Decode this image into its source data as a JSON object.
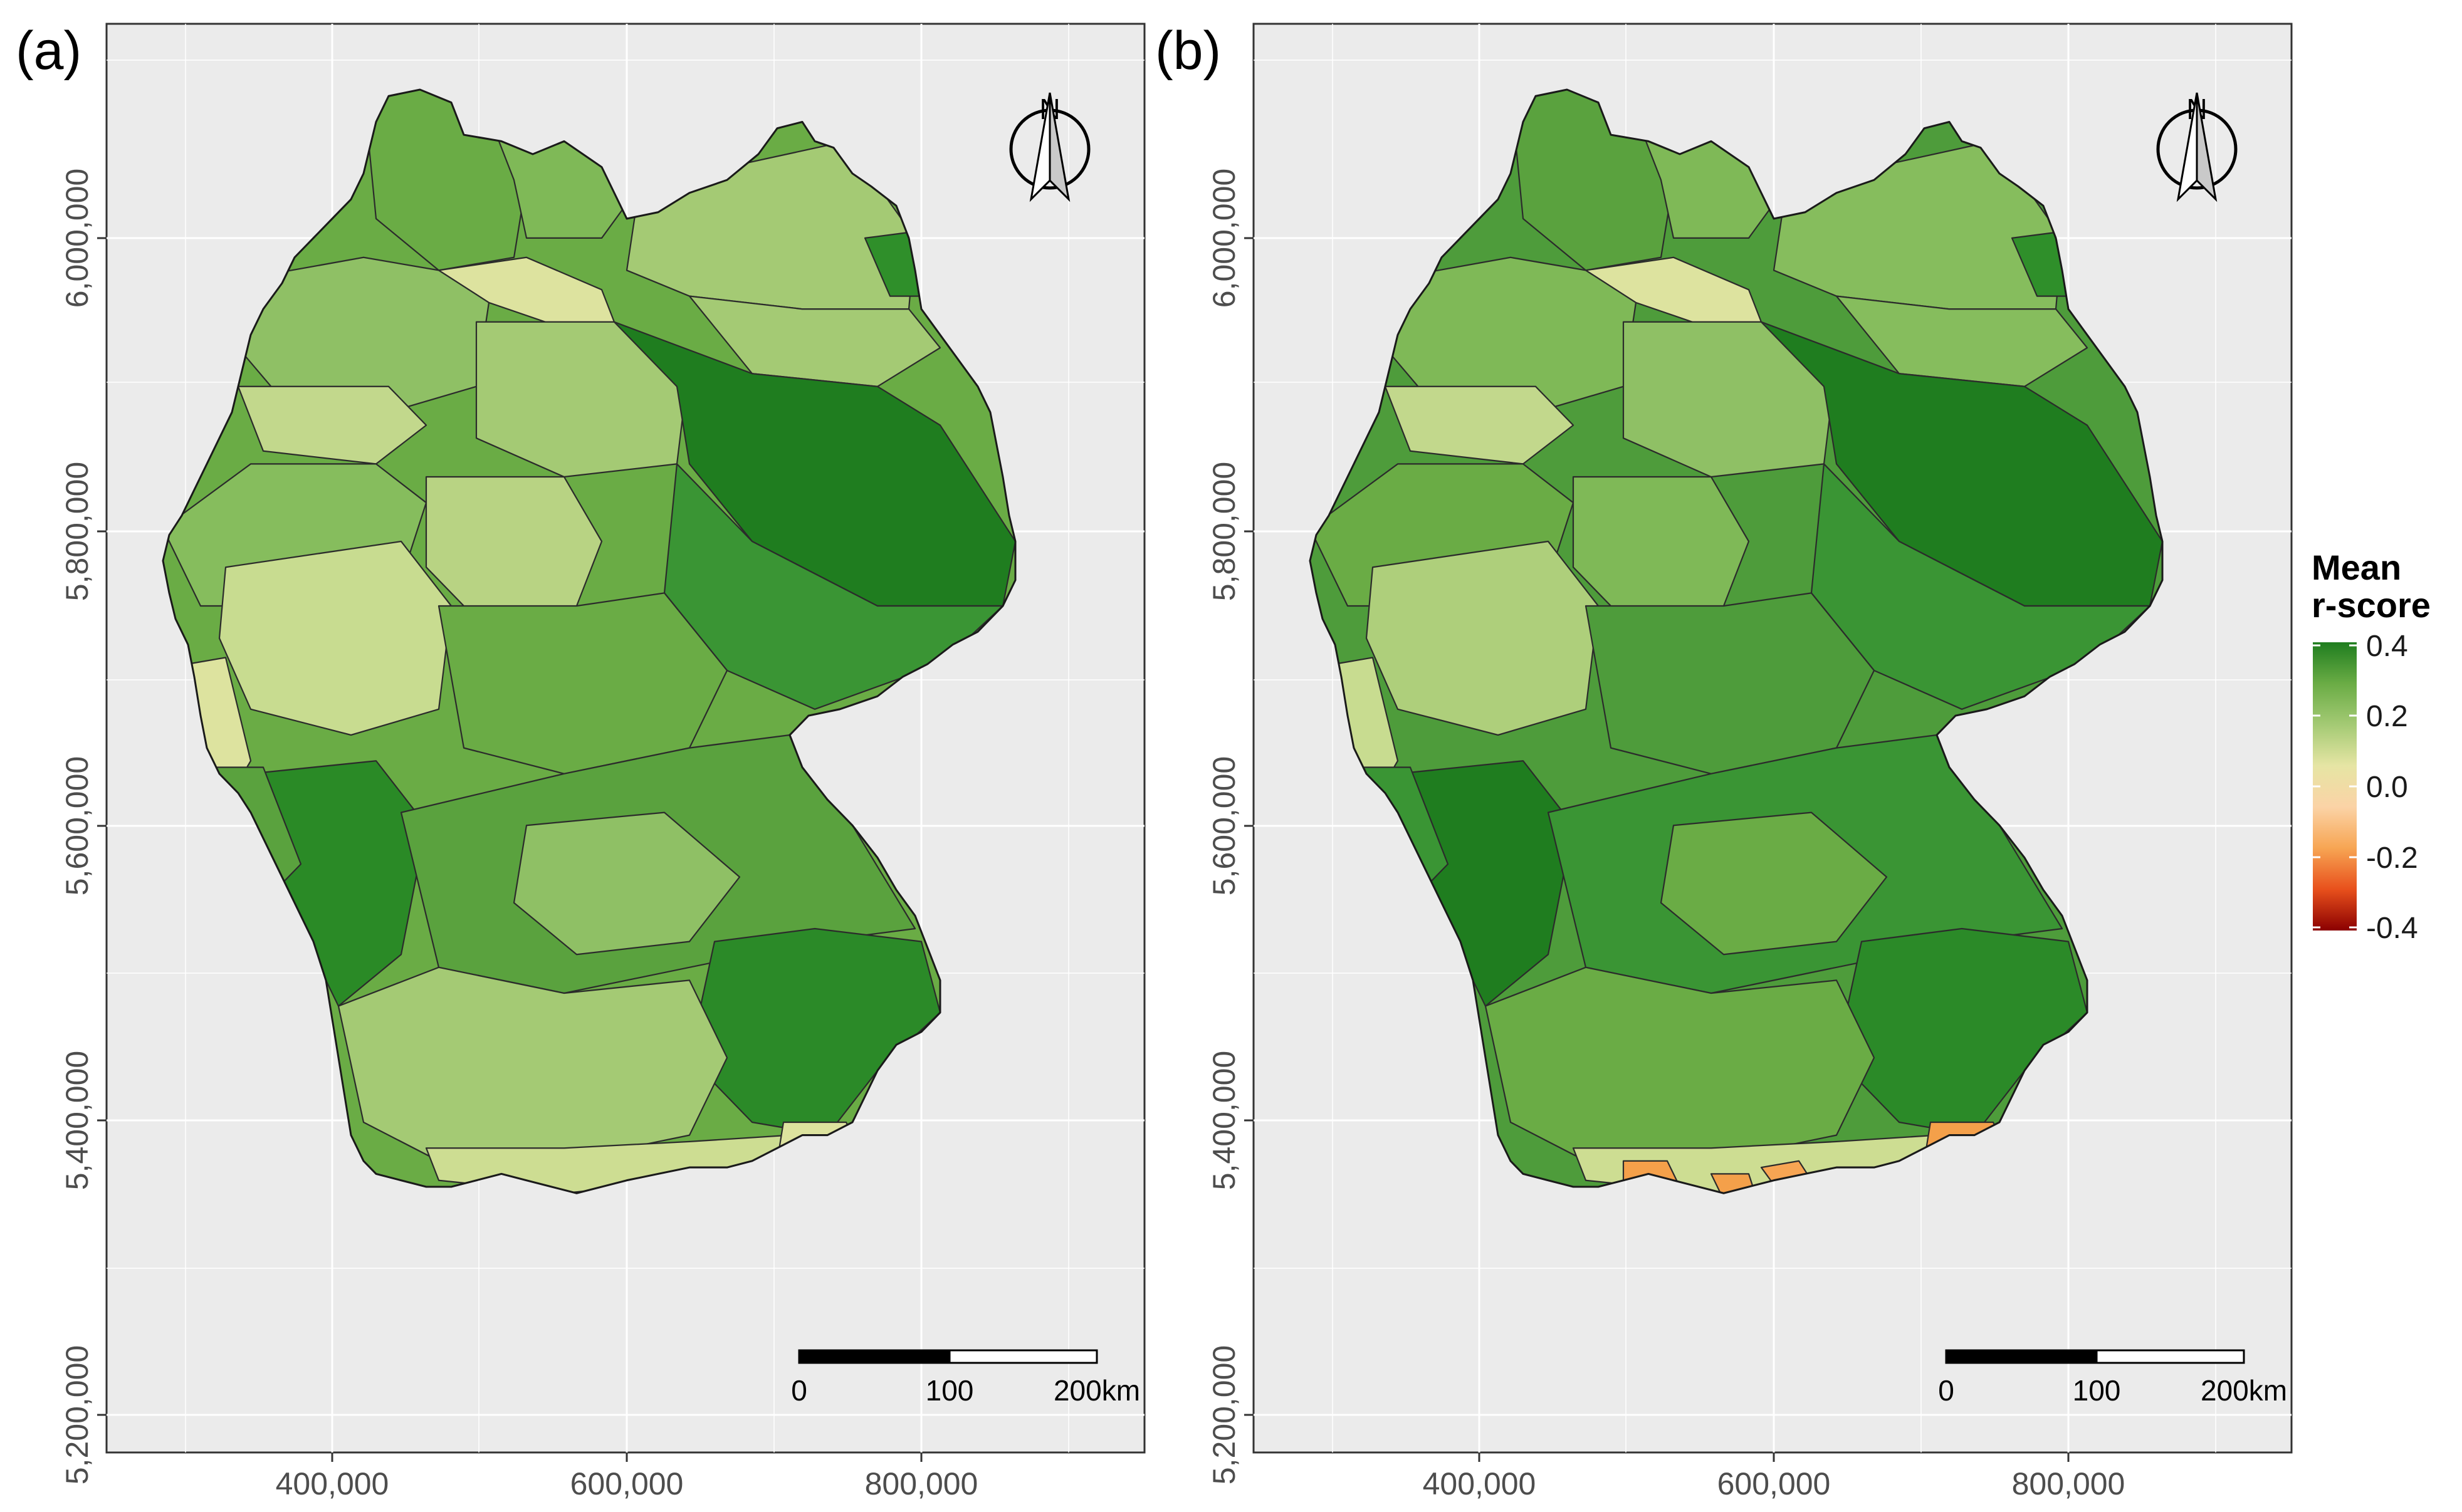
{
  "panels": [
    {
      "label": "(a)",
      "fills": {
        "north": "#6aac45",
        "schleswig": "#7fb957",
        "elbe_mouth": "#dde39f",
        "lowlands_w": "#8fc065",
        "nw_yellow": "#c2d88c",
        "westcentral": "#a4ca74",
        "center_pale": "#c8dc90",
        "west_edge": "#dde39f",
        "midwest": "#86bd5d",
        "ne_coast": "#a4ca74",
        "ne_inland": "#a4ca74",
        "ne_dark": "#2f8f2a",
        "east_dark": "#1f7d1f",
        "east_mid": "#3a9534",
        "center": "#6aac45",
        "center_light": "#b8d383",
        "sw_dark": "#2a8a26",
        "sw_mid": "#5aa23e",
        "south_mid": "#5aa23e",
        "south_light": "#8fc065",
        "bavaria_e": "#2b8a28",
        "alps_w": "#a4ca74",
        "alps_strip": "#cddd92",
        "alps_s": "#dde39f"
      },
      "hotspots": []
    },
    {
      "label": "(b)",
      "fills": {
        "north": "#5aa23e",
        "schleswig": "#7fb957",
        "elbe_mouth": "#dde39f",
        "lowlands_w": "#7fb957",
        "nw_yellow": "#c2d88c",
        "westcentral": "#8fc065",
        "center_pale": "#aecf7b",
        "west_edge": "#c8dc90",
        "midwest": "#6aac45",
        "ne_coast": "#86bd5d",
        "ne_inland": "#86bd5d",
        "ne_dark": "#2f8f2a",
        "east_dark": "#1f7d1f",
        "east_mid": "#3a9534",
        "center": "#4e9c3b",
        "center_light": "#7fb957",
        "sw_dark": "#1f7d1f",
        "sw_mid": "#3a9534",
        "south_mid": "#3a9534",
        "south_light": "#6aac45",
        "bavaria_e": "#2b8a28",
        "alps_w": "#6aac45",
        "alps_strip": "#cddd92",
        "alps_s": "#f4a04a"
      },
      "hotspots": [
        "#f4a04a",
        "#f7a553",
        "#f4a04a"
      ]
    }
  ],
  "axes": {
    "x_ticks": [
      "400,000",
      "600,000",
      "800,000"
    ],
    "y_ticks": [
      "5,200,000",
      "5,400,000",
      "5,600,000",
      "5,800,000",
      "6,000,000"
    ],
    "x_range": [
      250000,
      810000
    ],
    "y_range": [
      5180000,
      6140000
    ]
  },
  "north_arrow": {
    "letter": "N"
  },
  "scale_bar": {
    "labels": [
      "0",
      "100",
      "200km"
    ],
    "max_km": 200
  },
  "legend": {
    "title_line1": "Mean",
    "title_line2": "r-score",
    "ticks": [
      "0.4",
      "0.2",
      "0.0",
      "-0.2",
      "-0.4"
    ],
    "range": [
      -0.4,
      0.4
    ],
    "colors": [
      "#1f7d1f",
      "#6aac45",
      "#a4ca74",
      "#e6e5a4",
      "#fbd3a6",
      "#f7a553",
      "#e8501c",
      "#8b0000"
    ]
  }
}
